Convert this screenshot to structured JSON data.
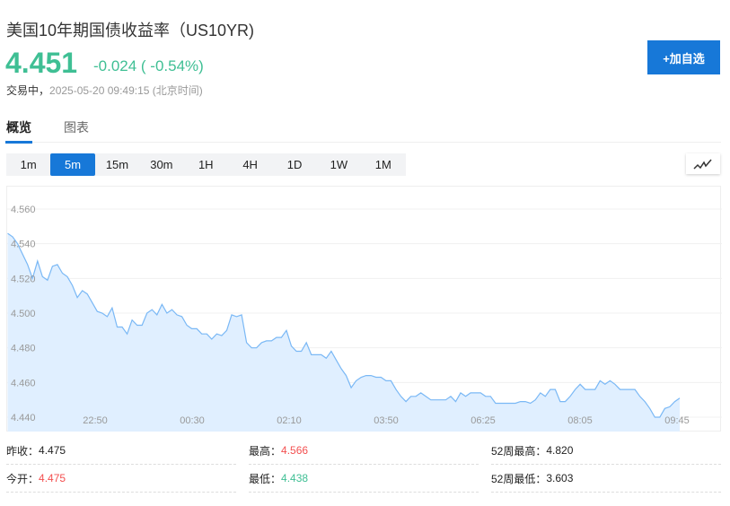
{
  "header": {
    "title": "美国10年期国债收益率（US10YR)",
    "price": "4.451",
    "change": "-0.024 ( -0.54%)",
    "status_label": "交易中，",
    "timestamp": "2025-05-20 09:49:15",
    "timezone": "(北京时间)",
    "add_button": "+加自选"
  },
  "tabs": [
    {
      "label": "概览",
      "active": true
    },
    {
      "label": "图表",
      "active": false
    }
  ],
  "periods": [
    "1m",
    "5m",
    "15m",
    "30m",
    "1H",
    "4H",
    "1D",
    "1W",
    "1M"
  ],
  "selected_period": "5m",
  "chart_type_icon": "line-chart-icon",
  "colors": {
    "accent": "#1778d8",
    "up": "#f35050",
    "down": "#3fbf94",
    "line": "#7ab8f5",
    "fill": "#e0efff"
  },
  "chart_data": {
    "type": "area",
    "y_ticks": [
      "4.560",
      "4.540",
      "4.520",
      "4.500",
      "4.480",
      "4.460",
      "4.440"
    ],
    "ylim": [
      4.44,
      4.56
    ],
    "x_ticks": [
      "22:50",
      "00:30",
      "02:10",
      "03:50",
      "06:25",
      "08:05",
      "09:45"
    ],
    "grid": true,
    "values": [
      4.546,
      4.544,
      4.54,
      4.534,
      4.528,
      4.52,
      4.53,
      4.521,
      4.519,
      4.527,
      4.528,
      4.523,
      4.521,
      4.516,
      4.509,
      4.513,
      4.511,
      4.506,
      4.501,
      4.5,
      4.498,
      4.503,
      4.492,
      4.492,
      4.488,
      4.496,
      4.493,
      4.493,
      4.5,
      4.502,
      4.499,
      4.505,
      4.5,
      4.502,
      4.499,
      4.498,
      4.493,
      4.491,
      4.491,
      4.488,
      4.488,
      4.485,
      4.488,
      4.487,
      4.49,
      4.499,
      4.498,
      4.499,
      4.483,
      4.48,
      4.48,
      4.483,
      4.484,
      4.484,
      4.486,
      4.486,
      4.49,
      4.481,
      4.478,
      4.478,
      4.483,
      4.476,
      4.476,
      4.476,
      4.474,
      4.478,
      4.473,
      4.468,
      4.464,
      4.457,
      4.461,
      4.463,
      4.464,
      4.464,
      4.463,
      4.463,
      4.461,
      4.461,
      4.456,
      4.452,
      4.449,
      4.452,
      4.452,
      4.454,
      4.452,
      4.45,
      4.45,
      4.45,
      4.45,
      4.452,
      4.449,
      4.454,
      4.452,
      4.454,
      4.454,
      4.454,
      4.452,
      4.452,
      4.448,
      4.448,
      4.448,
      4.448,
      4.448,
      4.449,
      4.449,
      4.448,
      4.45,
      4.454,
      4.452,
      4.456,
      4.456,
      4.449,
      4.449,
      4.452,
      4.456,
      4.459,
      4.456,
      4.456,
      4.456,
      4.461,
      4.459,
      4.461,
      4.459,
      4.456,
      4.456,
      4.456,
      4.456,
      4.452,
      4.449,
      4.445,
      4.44,
      4.44,
      4.445,
      4.446,
      4.449,
      4.451
    ]
  },
  "stats": [
    {
      "label": "昨收：",
      "value": "4.475",
      "color": "dark"
    },
    {
      "label": "最高：",
      "value": "4.566",
      "color": "red"
    },
    {
      "label": "52周最高：",
      "value": "4.820",
      "color": "dark"
    },
    {
      "label": "今开：",
      "value": "4.475",
      "color": "red"
    },
    {
      "label": "最低：",
      "value": "4.438",
      "color": "green"
    },
    {
      "label": "52周最低：",
      "value": "3.603",
      "color": "dark"
    }
  ]
}
